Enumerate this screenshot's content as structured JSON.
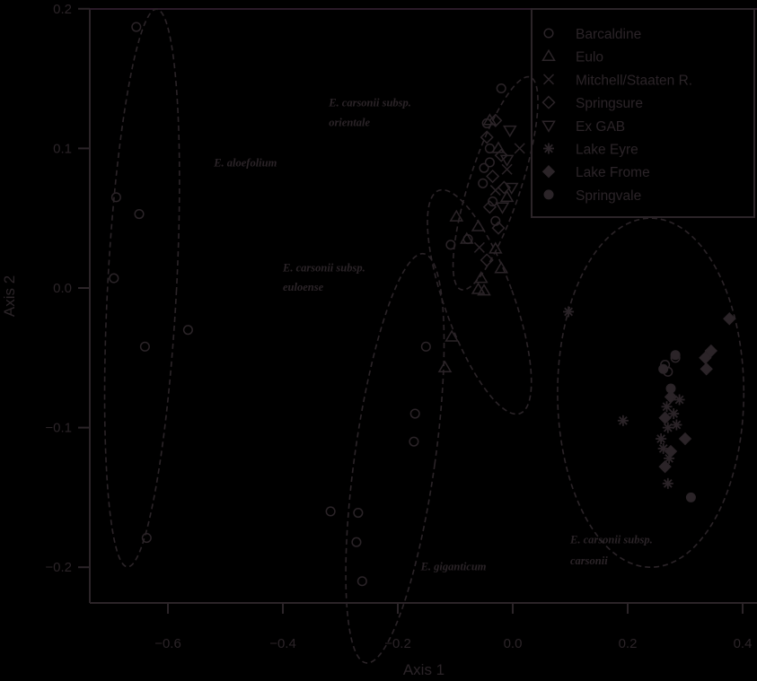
{
  "chart_data": {
    "type": "scatter",
    "title": "",
    "xlabel": "Axis 1",
    "ylabel": "Axis 2",
    "xlim": [
      -0.73,
      0.4
    ],
    "ylim": [
      -0.225,
      0.2
    ],
    "xticks": [
      -0.6,
      -0.4,
      -0.2,
      0.0,
      0.2,
      0.4
    ],
    "xtick_labels": [
      "−0.6",
      "−0.4",
      "−0.2",
      "0.0",
      "0.2",
      "0.4"
    ],
    "yticks": [
      0.2,
      0.1,
      0.0,
      -0.1,
      -0.2
    ],
    "ytick_labels": [
      "0.2",
      "0.1",
      "0.0",
      "−0.1",
      "−0.2"
    ],
    "grid": false,
    "legend_position": "top-right",
    "colors": {
      "background": "#000000",
      "foreground": "#2b2428"
    },
    "legend": [
      {
        "name": "Barcaldine",
        "marker": "circle-open"
      },
      {
        "name": "Eulo",
        "marker": "triangle-up-open"
      },
      {
        "name": "Mitchell/Staaten R.",
        "marker": "x"
      },
      {
        "name": "Springsure",
        "marker": "diamond-open"
      },
      {
        "name": "Ex  GAB",
        "marker": "triangle-down-open"
      },
      {
        "name": "Lake Eyre",
        "marker": "asterisk"
      },
      {
        "name": "Lake Frome",
        "marker": "diamond-filled"
      },
      {
        "name": "Springvale",
        "marker": "circle-filled"
      }
    ],
    "series": [
      {
        "name": "Barcaldine",
        "marker": "circle-open",
        "points": [
          [
            -0.655,
            0.187
          ],
          [
            -0.69,
            0.065
          ],
          [
            -0.65,
            0.053
          ],
          [
            -0.694,
            0.007
          ],
          [
            -0.64,
            -0.042
          ],
          [
            -0.565,
            -0.03
          ],
          [
            -0.637,
            -0.179
          ],
          [
            -0.151,
            -0.042
          ],
          [
            -0.17,
            -0.09
          ],
          [
            -0.172,
            -0.11
          ],
          [
            -0.317,
            -0.16
          ],
          [
            -0.269,
            -0.161
          ],
          [
            -0.272,
            -0.182
          ],
          [
            -0.262,
            -0.21
          ],
          [
            -0.108,
            0.031
          ],
          [
            -0.078,
            0.035
          ],
          [
            -0.02,
            0.143
          ],
          [
            -0.045,
            0.118
          ],
          [
            -0.04,
            0.1
          ],
          [
            -0.05,
            0.086
          ],
          [
            -0.052,
            0.075
          ],
          [
            -0.035,
            0.062
          ],
          [
            -0.03,
            0.048
          ],
          [
            -0.04,
            0.09
          ],
          [
            0.265,
            -0.055
          ],
          [
            0.27,
            -0.06
          ],
          [
            0.283,
            -0.05
          ]
        ]
      },
      {
        "name": "Eulo",
        "marker": "triangle-up-open",
        "points": [
          [
            -0.098,
            0.051
          ],
          [
            -0.06,
            0.044
          ],
          [
            -0.08,
            0.035
          ],
          [
            -0.03,
            0.028
          ],
          [
            -0.02,
            0.014
          ],
          [
            -0.055,
            0.007
          ],
          [
            -0.06,
            -0.001
          ],
          [
            -0.05,
            -0.002
          ],
          [
            -0.106,
            -0.035
          ],
          [
            -0.118,
            -0.057
          ],
          [
            -0.01,
            0.065
          ],
          [
            -0.025,
            0.1
          ],
          [
            -0.04,
            0.12
          ]
        ]
      },
      {
        "name": "Mitchell/Staaten R.",
        "marker": "x",
        "points": [
          [
            0.012,
            0.1
          ],
          [
            -0.058,
            0.029
          ],
          [
            -0.01,
            0.085
          ],
          [
            -0.03,
            0.07
          ]
        ]
      },
      {
        "name": "Springsure",
        "marker": "diamond-open",
        "points": [
          [
            -0.03,
            0.12
          ],
          [
            -0.045,
            0.108
          ],
          [
            -0.02,
            0.095
          ],
          [
            -0.035,
            0.08
          ],
          [
            -0.015,
            0.072
          ],
          [
            -0.04,
            0.058
          ],
          [
            -0.025,
            0.043
          ],
          [
            -0.045,
            0.02
          ]
        ]
      },
      {
        "name": "Ex  GAB",
        "marker": "triangle-down-open",
        "points": [
          [
            -0.005,
            0.113
          ],
          [
            -0.01,
            0.092
          ],
          [
            -0.002,
            0.072
          ],
          [
            -0.018,
            0.058
          ]
        ]
      },
      {
        "name": "Lake Eyre",
        "marker": "asterisk",
        "points": [
          [
            0.097,
            -0.017
          ],
          [
            0.192,
            -0.095
          ],
          [
            0.29,
            -0.08
          ],
          [
            0.28,
            -0.09
          ],
          [
            0.268,
            -0.085
          ],
          [
            0.27,
            -0.1
          ],
          [
            0.258,
            -0.108
          ],
          [
            0.262,
            -0.115
          ],
          [
            0.272,
            -0.122
          ],
          [
            0.27,
            -0.14
          ],
          [
            0.285,
            -0.098
          ]
        ]
      },
      {
        "name": "Lake Frome",
        "marker": "diamond-filled",
        "points": [
          [
            0.377,
            -0.022
          ],
          [
            0.345,
            -0.045
          ],
          [
            0.335,
            -0.05
          ],
          [
            0.337,
            -0.058
          ],
          [
            0.275,
            -0.078
          ],
          [
            0.3,
            -0.108
          ],
          [
            0.265,
            -0.093
          ],
          [
            0.275,
            -0.117
          ],
          [
            0.265,
            -0.128
          ]
        ]
      },
      {
        "name": "Springvale",
        "marker": "circle-filled",
        "points": [
          [
            0.283,
            -0.048
          ],
          [
            0.262,
            -0.058
          ],
          [
            0.275,
            -0.072
          ],
          [
            0.31,
            -0.15
          ]
        ]
      }
    ],
    "ellipses": [
      {
        "label": "E. aloefolium",
        "cx": -0.645,
        "cy": 0.0,
        "rx": 0.06,
        "ry": 0.2,
        "rotate_deg": 3
      },
      {
        "label": "E. carsonii subsp. orientale",
        "cx": -0.03,
        "cy": 0.075,
        "rx": 0.045,
        "ry": 0.08,
        "rotate_deg": 18
      },
      {
        "label": "E. carsonii subsp. euloense",
        "cx": -0.058,
        "cy": -0.01,
        "rx": 0.06,
        "ry": 0.085,
        "rotate_deg": -20
      },
      {
        "label": "E. giganticum",
        "cx": -0.205,
        "cy": -0.122,
        "rx": 0.07,
        "ry": 0.148,
        "rotate_deg": 8
      },
      {
        "label": "E. carsonii subsp. carsonii",
        "cx": 0.24,
        "cy": -0.075,
        "rx": 0.162,
        "ry": 0.125,
        "rotate_deg": 0
      }
    ],
    "annotations": [
      {
        "text": "E. aloefolium",
        "x": -0.52,
        "y": 0.087
      },
      {
        "text": "E. carsonii subsp.",
        "x": -0.32,
        "y": 0.13
      },
      {
        "text": "orientale",
        "x": -0.32,
        "y": 0.116
      },
      {
        "text": "E. carsonii subsp.",
        "x": -0.4,
        "y": 0.012
      },
      {
        "text": "euloense",
        "x": -0.4,
        "y": -0.002
      },
      {
        "text": "E. giganticum",
        "x": -0.16,
        "y": -0.202
      },
      {
        "text": "E. carsonii subsp.",
        "x": 0.1,
        "y": -0.183
      },
      {
        "text": "carsonii",
        "x": 0.1,
        "y": -0.198
      }
    ]
  }
}
